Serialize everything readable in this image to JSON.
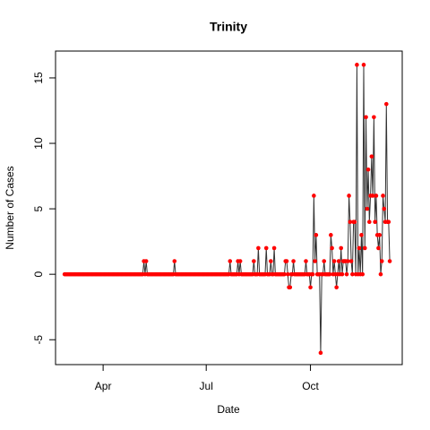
{
  "chart_data": {
    "type": "line",
    "title": "Trinity",
    "xlabel": "Date",
    "ylabel": "Number of Cases",
    "x": [
      57,
      58,
      59,
      60,
      61,
      62,
      63,
      64,
      65,
      66,
      67,
      68,
      69,
      70,
      71,
      72,
      73,
      74,
      75,
      76,
      77,
      78,
      79,
      80,
      81,
      82,
      83,
      84,
      85,
      86,
      87,
      88,
      89,
      90,
      91,
      92,
      93,
      94,
      95,
      96,
      97,
      98,
      99,
      100,
      101,
      102,
      103,
      104,
      105,
      106,
      107,
      108,
      109,
      110,
      111,
      112,
      113,
      114,
      115,
      116,
      117,
      118,
      119,
      120,
      121,
      122,
      123,
      124,
      125,
      126,
      127,
      128,
      129,
      130,
      131,
      132,
      133,
      134,
      135,
      136,
      137,
      138,
      139,
      140,
      141,
      142,
      143,
      144,
      145,
      146,
      147,
      148,
      149,
      150,
      151,
      152,
      153,
      154,
      155,
      156,
      157,
      158,
      159,
      160,
      161,
      162,
      163,
      164,
      165,
      166,
      167,
      168,
      169,
      170,
      171,
      172,
      173,
      174,
      175,
      176,
      177,
      178,
      179,
      180,
      181,
      182,
      183,
      184,
      185,
      186,
      187,
      188,
      189,
      190,
      191,
      192,
      193,
      194,
      195,
      196,
      197,
      198,
      199,
      200,
      201,
      202,
      203,
      204,
      205,
      206,
      207,
      208,
      209,
      210,
      211,
      212,
      213,
      214,
      215,
      216,
      217,
      218,
      219,
      220,
      221,
      222,
      223,
      224,
      225,
      226,
      227,
      228,
      229,
      230,
      231,
      232,
      233,
      234,
      235,
      236,
      237,
      238,
      239,
      240,
      241,
      242,
      243,
      244,
      245,
      246,
      247,
      248,
      249,
      250,
      251,
      252,
      253,
      254,
      255,
      256,
      257,
      258,
      259,
      260,
      261,
      262,
      263,
      264,
      265,
      266,
      267,
      268,
      269,
      270,
      271,
      272,
      273,
      274,
      275,
      276,
      277,
      278,
      279,
      280,
      281,
      282,
      283,
      284,
      285,
      286,
      287,
      288,
      289,
      290,
      291,
      292,
      293,
      294,
      295,
      296,
      297,
      298,
      299,
      300,
      301,
      302,
      303,
      304,
      305,
      306,
      307,
      308,
      309,
      310,
      311,
      312,
      313,
      314,
      315,
      316,
      317,
      318,
      319,
      320,
      321,
      322,
      323,
      324,
      325,
      326,
      327,
      328,
      329,
      330,
      331,
      332,
      333,
      334,
      335,
      336,
      337,
      338,
      339,
      340,
      341,
      342,
      343,
      344
    ],
    "series": [
      {
        "color": "#ff0000",
        "line_color": "#333333",
        "values": [
          0,
          0,
          0,
          0,
          0,
          0,
          0,
          0,
          0,
          0,
          0,
          0,
          0,
          0,
          0,
          0,
          0,
          0,
          0,
          0,
          0,
          0,
          0,
          0,
          0,
          0,
          0,
          0,
          0,
          0,
          0,
          0,
          0,
          0,
          0,
          0,
          0,
          0,
          0,
          0,
          0,
          0,
          0,
          0,
          0,
          0,
          0,
          0,
          0,
          0,
          0,
          0,
          0,
          0,
          0,
          0,
          0,
          0,
          0,
          0,
          0,
          0,
          0,
          0,
          0,
          0,
          0,
          0,
          0,
          0,
          1,
          0,
          1,
          0,
          0,
          0,
          0,
          0,
          0,
          0,
          0,
          0,
          0,
          0,
          0,
          0,
          0,
          0,
          0,
          0,
          0,
          0,
          0,
          0,
          0,
          0,
          0,
          1,
          0,
          0,
          0,
          0,
          0,
          0,
          0,
          0,
          0,
          0,
          0,
          0,
          0,
          0,
          0,
          0,
          0,
          0,
          0,
          0,
          0,
          0,
          0,
          0,
          0,
          0,
          0,
          0,
          0,
          0,
          0,
          0,
          0,
          0,
          0,
          0,
          0,
          0,
          0,
          0,
          0,
          0,
          0,
          0,
          0,
          0,
          0,
          0,
          1,
          0,
          0,
          0,
          0,
          0,
          0,
          1,
          0,
          1,
          0,
          0,
          0,
          0,
          0,
          0,
          0,
          0,
          0,
          0,
          0,
          1,
          0,
          0,
          0,
          2,
          0,
          0,
          0,
          0,
          0,
          0,
          2,
          0,
          0,
          0,
          1,
          0,
          0,
          2,
          0,
          0,
          0,
          0,
          0,
          0,
          0,
          0,
          0,
          1,
          1,
          0,
          -1,
          -1,
          0,
          0,
          1,
          0,
          0,
          0,
          0,
          0,
          0,
          0,
          0,
          0,
          0,
          1,
          0,
          0,
          0,
          -1,
          0,
          0,
          6,
          1,
          3,
          0,
          0,
          0,
          -6,
          0,
          0,
          1,
          0,
          0,
          0,
          0,
          0,
          3,
          2,
          0,
          1,
          0,
          -1,
          0,
          1,
          0,
          2,
          0,
          1,
          1,
          1,
          0,
          1,
          6,
          4,
          1,
          0,
          4,
          4,
          0,
          16,
          0,
          2,
          0,
          3,
          0,
          16,
          2,
          12,
          5,
          8,
          4,
          6,
          9,
          6,
          12,
          4,
          6,
          3,
          2,
          3,
          0,
          1,
          6,
          5,
          4,
          13,
          4,
          4,
          1
        ]
      }
    ],
    "xlim": [
      49,
      355
    ],
    "ylim": [
      -6.9,
      17.05
    ],
    "xticks": [
      {
        "value": 91,
        "label": "Apr"
      },
      {
        "value": 182,
        "label": "Jul"
      },
      {
        "value": 274,
        "label": "Oct"
      }
    ],
    "yticks": [
      -5,
      0,
      5,
      10,
      15
    ]
  }
}
